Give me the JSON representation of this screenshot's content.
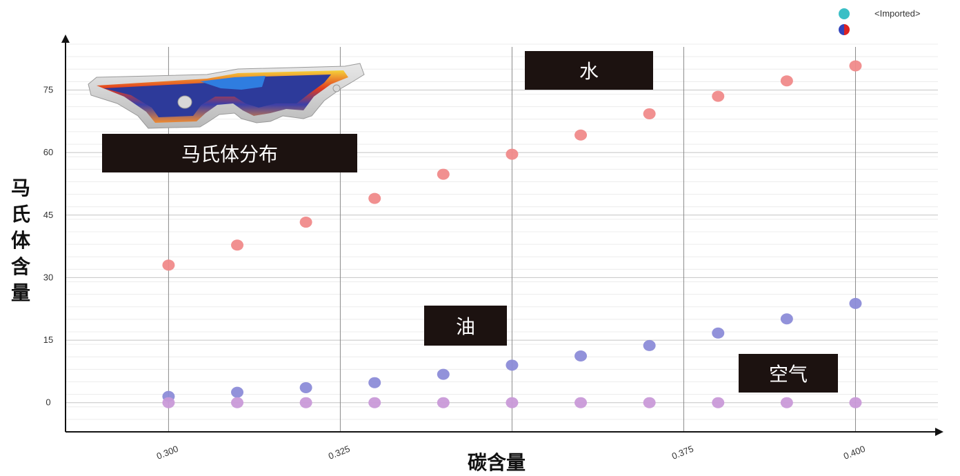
{
  "chart_data": {
    "type": "scatter",
    "xlabel": "碳含量",
    "ylabel": "马氏体含量",
    "xlim": [
      0.285,
      0.412
    ],
    "ylim": [
      -7,
      87
    ],
    "x_ticks": [
      0.3,
      0.325,
      0.35,
      0.375,
      0.4
    ],
    "x_tick_labels": [
      "0.300",
      "0.325",
      "",
      "0.375",
      "0.400"
    ],
    "y_ticks": [
      0,
      15,
      30,
      45,
      60,
      75
    ],
    "y_tick_labels": [
      "0",
      "15",
      "30",
      "45",
      "60",
      "75"
    ],
    "grid": true,
    "legend": {
      "placement": "top-right",
      "entries": [
        {
          "label": "<Imported>",
          "colors": [
            "#3bbfc6",
            "#3bbfc6"
          ]
        },
        {
          "label": "",
          "colors": [
            "#3344bb",
            "#dd2222"
          ]
        }
      ]
    },
    "series": [
      {
        "color": "#f08a8a",
        "x": [
          0.3,
          0.31,
          0.32,
          0.33,
          0.34,
          0.35,
          0.36,
          0.37,
          0.38,
          0.39,
          0.4
        ],
        "y": [
          33.0,
          37.8,
          43.3,
          49.0,
          54.8,
          59.6,
          64.2,
          69.3,
          73.5,
          77.2,
          80.8
        ]
      },
      {
        "color": "#8c8cd8",
        "x": [
          0.3,
          0.31,
          0.32,
          0.33,
          0.34,
          0.35,
          0.36,
          0.37,
          0.38,
          0.39,
          0.4
        ],
        "y": [
          1.5,
          2.5,
          3.6,
          4.8,
          6.8,
          9.0,
          11.2,
          13.7,
          16.7,
          20.1,
          23.8
        ]
      },
      {
        "color": "#c99ad8",
        "x": [
          0.3,
          0.31,
          0.32,
          0.33,
          0.34,
          0.35,
          0.36,
          0.37,
          0.38,
          0.39,
          0.4
        ],
        "y": [
          0,
          0,
          0,
          0,
          0,
          0,
          0,
          0,
          0,
          0,
          0
        ]
      }
    ],
    "annotations": [
      {
        "text": "马氏体分布"
      },
      {
        "text": "水"
      },
      {
        "text": "油"
      },
      {
        "text": "空气"
      }
    ],
    "inset_image": {
      "icon": "martensite-distribution-part-image"
    }
  }
}
